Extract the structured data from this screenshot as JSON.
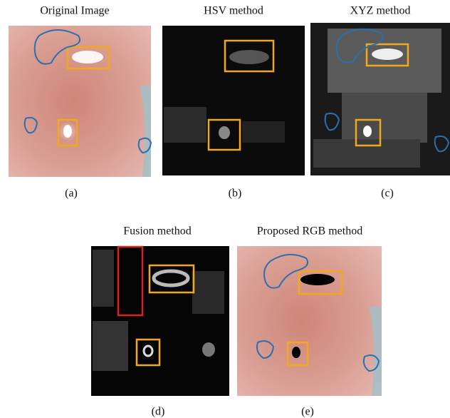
{
  "panels": [
    {
      "title": "Original Image",
      "caption": "(a)"
    },
    {
      "title": "HSV method",
      "caption": "(b)"
    },
    {
      "title": "XYZ method",
      "caption": "(c)"
    },
    {
      "title": "Fusion method",
      "caption": "(d)"
    },
    {
      "title": "Proposed RGB method",
      "caption": "(e)"
    }
  ]
}
